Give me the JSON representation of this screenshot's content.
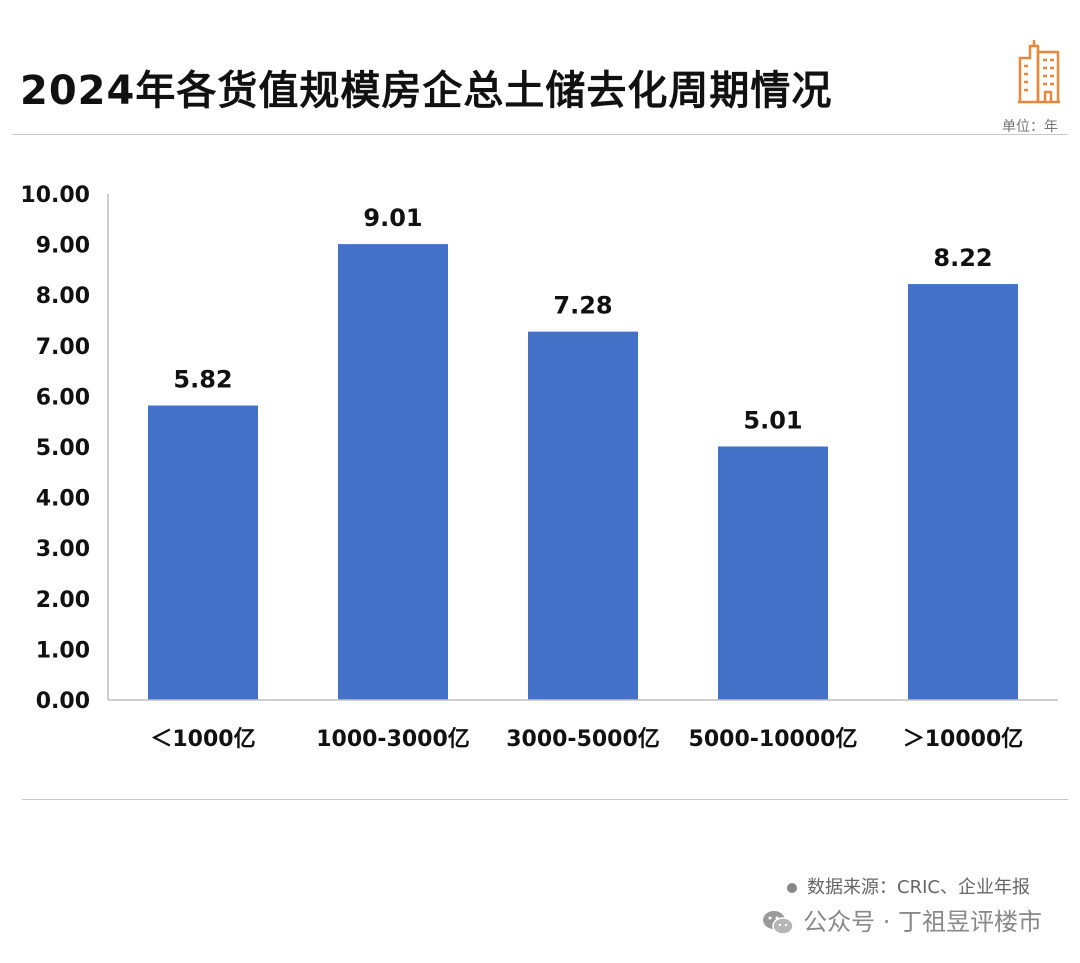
{
  "header": {
    "title": "2024年各货值规模房企总土储去化周期情况",
    "unit": "单位：年"
  },
  "icons": {
    "header_icon": "city-buildings-icon",
    "footer_icon": "wechat-icon"
  },
  "colors": {
    "bar": "#4472C8",
    "accent_icon": "#E8883C"
  },
  "chart_data": {
    "type": "bar",
    "title": "2024年各货值规模房企总土储去化周期情况",
    "categories": [
      "＜1000亿",
      "1000-3000亿",
      "3000-5000亿",
      "5000-10000亿",
      "＞10000亿"
    ],
    "values": [
      5.82,
      9.01,
      7.28,
      5.01,
      8.22
    ],
    "value_labels": [
      "5.82",
      "9.01",
      "7.28",
      "5.01",
      "8.22"
    ],
    "yticks": [
      "0.00",
      "1.00",
      "2.00",
      "3.00",
      "4.00",
      "5.00",
      "6.00",
      "7.00",
      "8.00",
      "9.00",
      "10.00"
    ],
    "ylim": [
      0,
      10
    ],
    "xlabel": "",
    "ylabel": "",
    "grid": false,
    "legend": "none"
  },
  "footer": {
    "source": "数据来源：CRIC、企业年报",
    "account": "公众号 · 丁祖昱评楼市"
  }
}
